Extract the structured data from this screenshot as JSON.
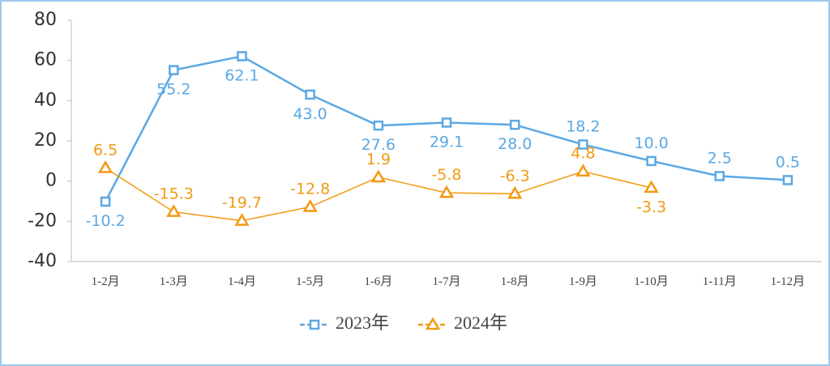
{
  "chart_data": {
    "type": "line",
    "categories": [
      "1-2月",
      "1-3月",
      "1-4月",
      "1-5月",
      "1-6月",
      "1-7月",
      "1-8月",
      "1-9月",
      "1-10月",
      "1-11月",
      "1-12月"
    ],
    "series": [
      {
        "name": "2023年",
        "color": "#5ba8e4",
        "marker": "square",
        "values": [
          -10.2,
          55.2,
          62.1,
          43.0,
          27.6,
          29.1,
          28.0,
          18.2,
          10.0,
          2.5,
          0.5
        ],
        "value_labels": [
          "-10.2",
          "55.2",
          "62.1",
          "43.0",
          "27.6",
          "29.1",
          "28.0",
          "18.2",
          "10.0",
          "2.5",
          "0.5"
        ]
      },
      {
        "name": "2024年",
        "color": "#f29a12",
        "marker": "triangle",
        "values": [
          6.5,
          -15.3,
          -19.7,
          -12.8,
          1.9,
          -5.8,
          -6.3,
          4.8,
          -3.3,
          null,
          null
        ],
        "value_labels": [
          "6.5",
          "-15.3",
          "-19.7",
          "-12.8",
          "1.9",
          "-5.8",
          "-6.3",
          "4.8",
          "-3.3",
          null,
          null
        ]
      }
    ],
    "ylim": [
      -40,
      80
    ],
    "yticks": [
      -40,
      -20,
      0,
      20,
      40,
      60,
      80
    ],
    "grid": false,
    "legend": "bottom"
  }
}
